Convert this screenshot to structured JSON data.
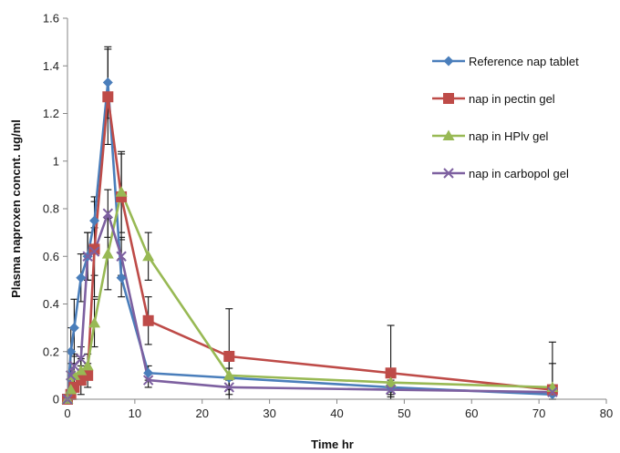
{
  "chart_data": {
    "type": "line",
    "title": "",
    "xlabel": "Time hr",
    "ylabel": "Plasma naproxen concnt. ug/ml",
    "xlim": [
      0,
      80
    ],
    "ylim": [
      0,
      1.6
    ],
    "xticks": [
      0,
      10,
      20,
      30,
      40,
      50,
      60,
      70,
      80
    ],
    "yticks": [
      0,
      0.2,
      0.4,
      0.6,
      0.8,
      1,
      1.2,
      1.4,
      1.6
    ],
    "xtick_labels": [
      "0",
      "10",
      "20",
      "30",
      "40",
      "50",
      "60",
      "70",
      "80"
    ],
    "ytick_labels": [
      "0",
      "0.2",
      "0.4",
      "0.6",
      "0.8",
      "1",
      "1.2",
      "1.4",
      "1.6"
    ],
    "grid": false,
    "legend_position": "top-right",
    "series": [
      {
        "name": "Reference nap tablet",
        "color": "#4a7ebb",
        "marker": "diamond",
        "x": [
          0,
          0.5,
          1,
          2,
          3,
          4,
          6,
          8,
          12,
          24,
          48,
          72
        ],
        "y": [
          0.0,
          0.2,
          0.3,
          0.51,
          0.6,
          0.75,
          1.33,
          0.51,
          0.11,
          0.09,
          0.05,
          0.02
        ],
        "err": [
          0.02,
          0.1,
          0.12,
          0.1,
          0.1,
          0.1,
          0.15,
          0.08,
          0.03,
          0.04,
          0.03,
          0.02
        ]
      },
      {
        "name": "nap in pectin gel",
        "color": "#be4b48",
        "marker": "square",
        "x": [
          0,
          0.5,
          1,
          2,
          3,
          4,
          6,
          8,
          12,
          24,
          48,
          72
        ],
        "y": [
          0.0,
          0.02,
          0.05,
          0.08,
          0.1,
          0.63,
          1.27,
          0.85,
          0.33,
          0.18,
          0.11,
          0.04
        ],
        "err": [
          0.02,
          0.04,
          0.05,
          0.06,
          0.05,
          0.2,
          0.2,
          0.18,
          0.1,
          0.2,
          0.2,
          0.2
        ]
      },
      {
        "name": "nap in HPlv gel",
        "color": "#98b954",
        "marker": "triangle",
        "x": [
          0,
          0.5,
          1,
          2,
          3,
          4,
          6,
          8,
          12,
          24,
          48,
          72
        ],
        "y": [
          0.0,
          0.04,
          0.1,
          0.12,
          0.14,
          0.32,
          0.61,
          0.87,
          0.6,
          0.1,
          0.07,
          0.05
        ],
        "err": [
          0.02,
          0.03,
          0.05,
          0.05,
          0.05,
          0.1,
          0.15,
          0.17,
          0.1,
          0.06,
          0.04,
          0.1
        ]
      },
      {
        "name": "nap in carbopol gel",
        "color": "#7d60a0",
        "marker": "x",
        "x": [
          0,
          0.5,
          1,
          2,
          3,
          4,
          6,
          8,
          12,
          24,
          48,
          72
        ],
        "y": [
          0.0,
          0.1,
          0.14,
          0.17,
          0.6,
          0.62,
          0.78,
          0.6,
          0.08,
          0.05,
          0.04,
          0.03
        ],
        "err": [
          0.02,
          0.05,
          0.05,
          0.05,
          0.1,
          0.1,
          0.1,
          0.08,
          0.03,
          0.03,
          0.03,
          0.03
        ]
      }
    ]
  }
}
